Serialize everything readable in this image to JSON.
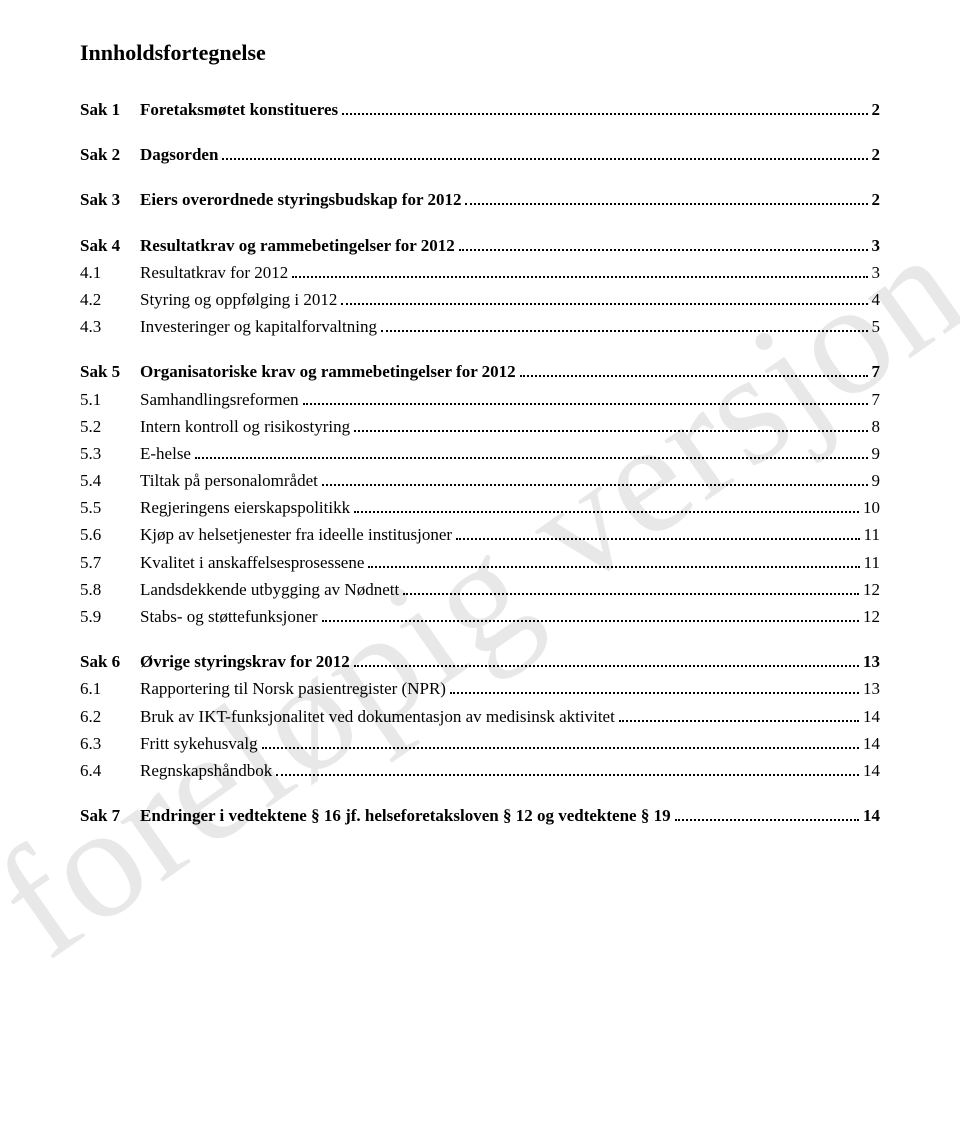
{
  "document": {
    "title": "Innholdsfortegnelse",
    "watermark": "foreløpig versjon",
    "background_color": "#ffffff",
    "text_color": "#000000",
    "watermark_color": "rgba(128,128,128,0.18)",
    "font_family": "Georgia, serif",
    "title_fontsize": 22,
    "body_fontsize": 17
  },
  "toc": [
    {
      "type": "sak",
      "num": "Sak 1",
      "text": "Foretaksmøtet konstitueres",
      "page": "2"
    },
    {
      "type": "sak",
      "num": "Sak 2",
      "text": "Dagsorden",
      "page": "2"
    },
    {
      "type": "sak",
      "num": "Sak 3",
      "text": "Eiers overordnede styringsbudskap for 2012",
      "page": "2"
    },
    {
      "type": "sak",
      "num": "Sak 4",
      "text": "Resultatkrav og rammebetingelser for 2012",
      "page": "3"
    },
    {
      "type": "sub",
      "num": "4.1",
      "text": "Resultatkrav for 2012",
      "page": "3"
    },
    {
      "type": "sub",
      "num": "4.2",
      "text": "Styring og oppfølging i 2012",
      "page": "4"
    },
    {
      "type": "sub",
      "num": "4.3",
      "text": "Investeringer og kapitalforvaltning",
      "page": "5"
    },
    {
      "type": "sak",
      "num": "Sak 5",
      "text": "Organisatoriske krav og rammebetingelser for 2012",
      "page": "7"
    },
    {
      "type": "sub",
      "num": "5.1",
      "text": "Samhandlingsreformen",
      "page": "7"
    },
    {
      "type": "sub",
      "num": "5.2",
      "text": "Intern kontroll og risikostyring",
      "page": "8"
    },
    {
      "type": "sub",
      "num": "5.3",
      "text": "E-helse",
      "page": "9"
    },
    {
      "type": "sub",
      "num": "5.4",
      "text": "Tiltak på personalområdet",
      "page": "9"
    },
    {
      "type": "sub",
      "num": "5.5",
      "text": "Regjeringens eierskapspolitikk",
      "page": "10"
    },
    {
      "type": "sub",
      "num": "5.6",
      "text": "Kjøp av helsetjenester fra ideelle institusjoner",
      "page": "11"
    },
    {
      "type": "sub",
      "num": "5.7",
      "text": "Kvalitet i anskaffelsesprosessene",
      "page": "11"
    },
    {
      "type": "sub",
      "num": "5.8",
      "text": "Landsdekkende utbygging av Nødnett",
      "page": "12"
    },
    {
      "type": "sub",
      "num": "5.9",
      "text": "Stabs- og støttefunksjoner",
      "page": "12"
    },
    {
      "type": "sak",
      "num": "Sak 6",
      "text": "Øvrige styringskrav for 2012",
      "page": "13"
    },
    {
      "type": "sub",
      "num": "6.1",
      "text": "Rapportering til Norsk pasientregister (NPR)",
      "page": "13"
    },
    {
      "type": "sub",
      "num": "6.2",
      "text": "Bruk av IKT-funksjonalitet ved dokumentasjon av medisinsk aktivitet",
      "page": "14"
    },
    {
      "type": "sub",
      "num": "6.3",
      "text": "Fritt sykehusvalg",
      "page": "14"
    },
    {
      "type": "sub",
      "num": "6.4",
      "text": "Regnskapshåndbok",
      "page": "14"
    },
    {
      "type": "sak",
      "num": "Sak 7",
      "text": "Endringer i vedtektene § 16 jf. helseforetaksloven § 12 og vedtektene § 19",
      "page": "14"
    }
  ]
}
